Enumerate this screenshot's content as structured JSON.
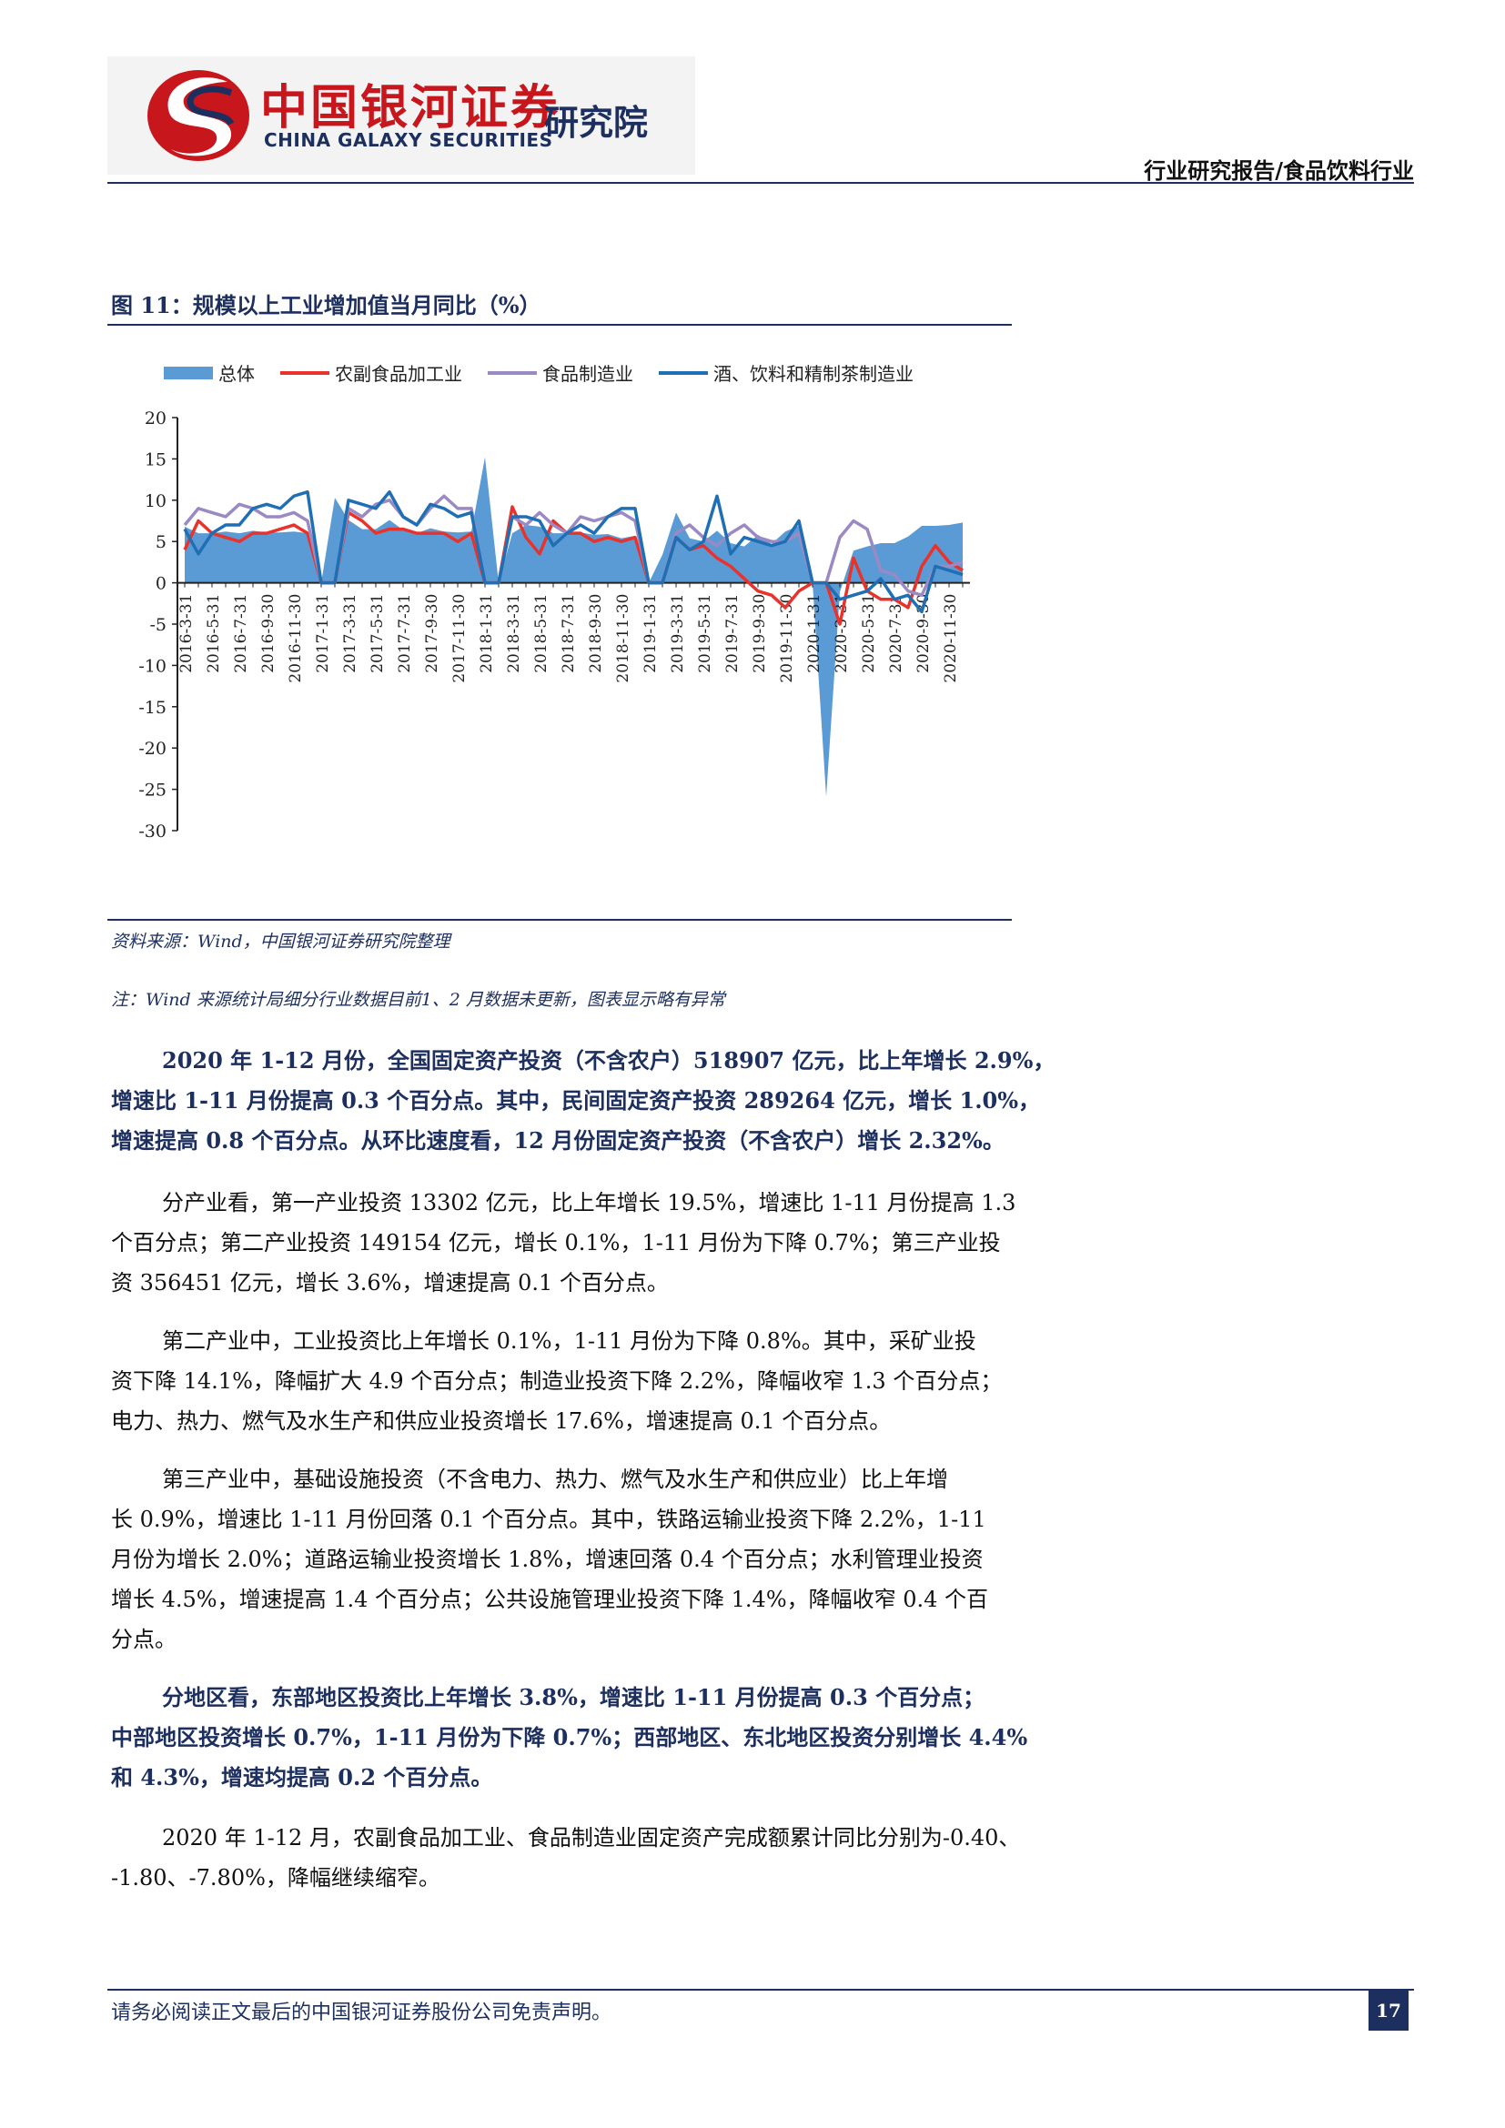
{
  "header": {
    "logo_cn": "中国银河证券",
    "logo_en": "CHINA GALAXY SECURITIES",
    "logo_institute": "研究院",
    "report_type": "行业研究报告/食品饮料行业"
  },
  "figure": {
    "title": "图 11：规模以上工业增加值当月同比（%）",
    "source": "资料来源：Wind，中国银河证券研究院整理",
    "note": "注：Wind 来源统计局细分行业数据目前1、2 月数据未更新，图表显示略有异常"
  },
  "chart_data": {
    "type": "line",
    "title": "",
    "xlabel": "",
    "ylabel": "",
    "ylim": [
      -30,
      20
    ],
    "yticks": [
      20,
      15,
      10,
      5,
      0,
      -5,
      -10,
      -15,
      -20,
      -25,
      -30
    ],
    "grid": false,
    "legend_position": "top",
    "x_ticklabels": [
      "2016-3-31",
      "2016-5-31",
      "2016-7-31",
      "2016-9-30",
      "2016-11-30",
      "2017-1-31",
      "2017-3-31",
      "2017-5-31",
      "2017-7-31",
      "2017-9-30",
      "2017-11-30",
      "2018-1-31",
      "2018-3-31",
      "2018-5-31",
      "2018-7-31",
      "2018-9-30",
      "2018-11-30",
      "2019-1-31",
      "2019-3-31",
      "2019-5-31",
      "2019-7-31",
      "2019-9-30",
      "2019-11-30",
      "2020-1-31",
      "2020-3-31",
      "2020-5-31",
      "2020-7-31",
      "2020-9-30",
      "2020-11-30"
    ],
    "x": [
      "2016-3",
      "2016-4",
      "2016-5",
      "2016-6",
      "2016-7",
      "2016-8",
      "2016-9",
      "2016-10",
      "2016-11",
      "2016-12",
      "2017-1",
      "2017-2",
      "2017-3",
      "2017-4",
      "2017-5",
      "2017-6",
      "2017-7",
      "2017-8",
      "2017-9",
      "2017-10",
      "2017-11",
      "2017-12",
      "2018-1",
      "2018-2",
      "2018-3",
      "2018-4",
      "2018-5",
      "2018-6",
      "2018-7",
      "2018-8",
      "2018-9",
      "2018-10",
      "2018-11",
      "2018-12",
      "2019-1",
      "2019-2",
      "2019-3",
      "2019-4",
      "2019-5",
      "2019-6",
      "2019-7",
      "2019-8",
      "2019-9",
      "2019-10",
      "2019-11",
      "2019-12",
      "2020-1",
      "2020-2",
      "2020-3",
      "2020-4",
      "2020-5",
      "2020-6",
      "2020-7",
      "2020-8",
      "2020-9",
      "2020-10",
      "2020-11",
      "2020-12"
    ],
    "series": [
      {
        "name": "总体",
        "type": "area",
        "color": "#5b9bd5",
        "values": [
          6.8,
          6.0,
          6.0,
          6.2,
          6.0,
          6.3,
          6.1,
          6.1,
          6.2,
          6.0,
          0,
          10.3,
          7.6,
          6.5,
          6.5,
          7.6,
          6.4,
          6.0,
          6.6,
          6.2,
          6.1,
          6.2,
          15.2,
          0,
          6.0,
          7.0,
          6.8,
          6.0,
          6.0,
          6.1,
          5.8,
          5.9,
          5.4,
          5.7,
          0,
          3.4,
          8.5,
          5.4,
          5.0,
          6.3,
          4.8,
          4.4,
          5.8,
          4.7,
          6.2,
          6.9,
          0,
          -25.9,
          -1.1,
          3.9,
          4.4,
          4.8,
          4.8,
          5.6,
          6.9,
          6.9,
          7.0,
          7.3
        ]
      },
      {
        "name": "农副食品加工业",
        "type": "line",
        "color": "#e8322b",
        "values": [
          4.0,
          7.5,
          6.0,
          5.5,
          5.0,
          6.0,
          6.0,
          6.5,
          7.0,
          6.0,
          0,
          0,
          8.5,
          7.5,
          6.0,
          6.5,
          6.5,
          6.0,
          6.0,
          6.0,
          5.0,
          6.0,
          0,
          0,
          9.2,
          5.5,
          3.5,
          7.5,
          6.0,
          6.0,
          5.0,
          5.5,
          5.0,
          5.5,
          0,
          0,
          5.5,
          4.0,
          4.5,
          3.0,
          2.0,
          0.5,
          -1.0,
          -1.5,
          -3.0,
          -1.0,
          0,
          0,
          -5.0,
          3.0,
          -1.0,
          -2.0,
          -2.0,
          -3.0,
          2.0,
          4.5,
          2.5,
          1.5
        ]
      },
      {
        "name": "食品制造业",
        "type": "line",
        "color": "#9b89c4",
        "values": [
          7.0,
          9.0,
          8.5,
          8.0,
          9.5,
          9.0,
          8.0,
          8.0,
          8.5,
          7.5,
          0,
          0,
          9.0,
          8.0,
          9.5,
          10.0,
          8.0,
          7.0,
          9.0,
          10.5,
          9.0,
          9.0,
          0,
          0,
          8.0,
          7.0,
          8.5,
          7.0,
          6.0,
          8.0,
          7.5,
          8.0,
          8.5,
          7.5,
          0,
          0,
          6.0,
          7.0,
          5.5,
          4.5,
          6.0,
          7.0,
          5.5,
          5.0,
          5.0,
          6.0,
          0,
          0,
          5.5,
          7.5,
          6.5,
          1.5,
          1.0,
          -1.0,
          -1.5,
          2.0,
          2.0,
          2.5
        ]
      },
      {
        "name": "酒、饮料和精制茶制造业",
        "type": "line",
        "color": "#1f6fb5",
        "values": [
          6.5,
          3.5,
          6.0,
          7.0,
          7.0,
          9.0,
          9.5,
          9.0,
          10.5,
          11.0,
          0,
          0,
          10.0,
          9.5,
          9.0,
          11.0,
          8.0,
          7.0,
          9.5,
          9.0,
          8.0,
          8.5,
          0,
          0,
          8.0,
          8.0,
          7.5,
          4.5,
          6.0,
          7.0,
          6.0,
          8.0,
          9.0,
          9.0,
          0,
          0,
          5.5,
          4.0,
          5.0,
          10.5,
          3.5,
          5.5,
          5.0,
          4.5,
          5.0,
          7.5,
          0,
          0,
          -2.0,
          -1.5,
          -1.0,
          0.5,
          -2.0,
          -1.5,
          -3.5,
          2.0,
          1.5,
          1.0
        ]
      }
    ]
  },
  "paragraphs": [
    {
      "bold": true,
      "lines": [
        "2020 年 1-12 月份，全国固定资产投资（不含农户）518907 亿元，比上年增长 2.9%，",
        "增速比 1-11 月份提高 0.3 个百分点。其中，民间固定资产投资 289264 亿元，增长 1.0%，",
        "增速提高 0.8 个百分点。从环比速度看，12 月份固定资产投资（不含农户）增长 2.32%。"
      ]
    },
    {
      "bold": false,
      "lines": [
        "分产业看，第一产业投资 13302 亿元，比上年增长 19.5%，增速比 1-11 月份提高 1.3",
        "个百分点；第二产业投资 149154 亿元，增长 0.1%，1-11 月份为下降 0.7%；第三产业投",
        "资 356451 亿元，增长 3.6%，增速提高 0.1 个百分点。"
      ]
    },
    {
      "bold": false,
      "lines": [
        "第二产业中，工业投资比上年增长 0.1%，1-11 月份为下降 0.8%。其中，采矿业投",
        "资下降 14.1%，降幅扩大 4.9 个百分点；制造业投资下降 2.2%，降幅收窄 1.3 个百分点；",
        "电力、热力、燃气及水生产和供应业投资增长 17.6%，增速提高 0.1 个百分点。"
      ]
    },
    {
      "bold": false,
      "lines": [
        "第三产业中，基础设施投资（不含电力、热力、燃气及水生产和供应业）比上年增",
        "长 0.9%，增速比 1-11 月份回落 0.1 个百分点。其中，铁路运输业投资下降 2.2%，1-11",
        "月份为增长 2.0%；道路运输业投资增长 1.8%，增速回落 0.4 个百分点；水利管理业投资",
        "增长 4.5%，增速提高 1.4 个百分点；公共设施管理业投资下降 1.4%，降幅收窄 0.4 个百",
        "分点。"
      ]
    },
    {
      "bold": true,
      "lines": [
        "分地区看，东部地区投资比上年增长 3.8%，增速比 1-11 月份提高 0.3 个百分点；",
        "中部地区投资增长 0.7%，1-11 月份为下降 0.7%；西部地区、东北地区投资分别增长 4.4%",
        "和 4.3%，增速均提高 0.2 个百分点。"
      ]
    },
    {
      "bold": false,
      "lines": [
        "2020 年 1-12 月，农副食品加工业、食品制造业固定资产完成额累计同比分别为-0.40、",
        "-1.80、-7.80%，降幅继续缩窄。"
      ]
    }
  ],
  "footer": {
    "disclaimer": "请务必阅读正文最后的中国银河证券股份公司免责声明。",
    "page_number": "17"
  }
}
